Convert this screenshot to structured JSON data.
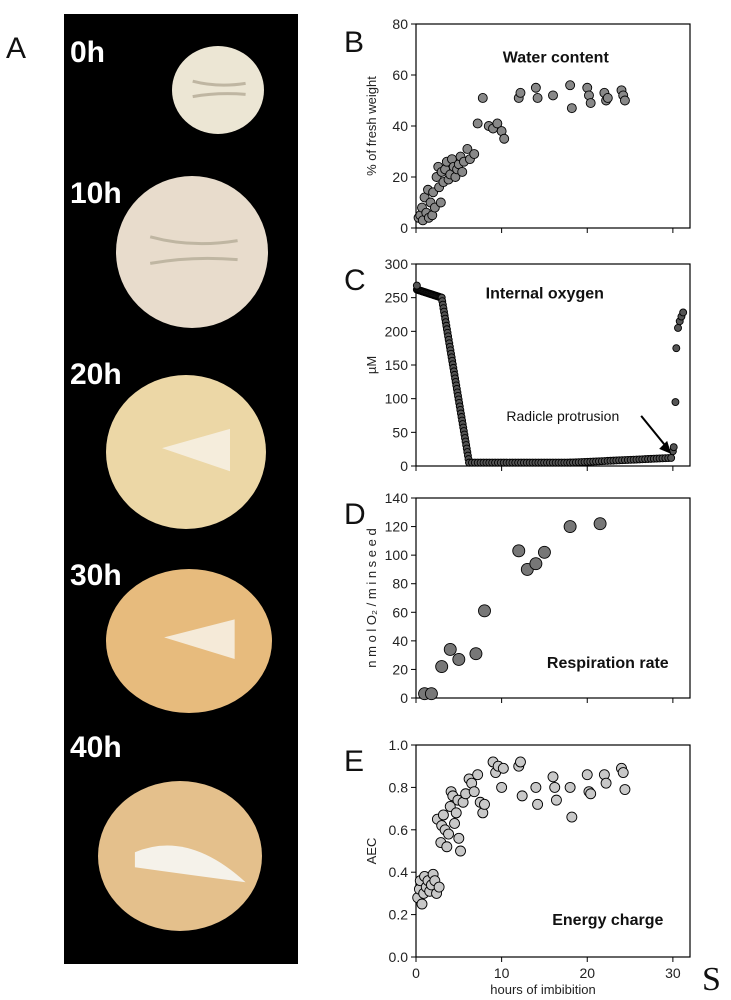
{
  "figure": {
    "panel_a_letter": "A",
    "seed_labels": [
      "0h",
      "10h",
      "20h",
      "30h",
      "40h"
    ],
    "seed_colors": {
      "0h": "#ece6d4",
      "10h": "#e8dccc",
      "20h": "#ecd7a6",
      "30h": "#e7bb7d",
      "40h": "#e4c08c"
    },
    "x_axis_label": "hours of imbibition",
    "corner_mark": "S"
  },
  "chart_data": [
    {
      "id": "B",
      "letter": "B",
      "type": "scatter",
      "title": "Water content",
      "xlabel": "",
      "ylabel": "% of fresh weight",
      "xlim": [
        0,
        32
      ],
      "ylim": [
        0,
        80
      ],
      "yticks": [
        0,
        20,
        40,
        60,
        80
      ],
      "xticks": [
        0,
        10,
        20,
        30
      ],
      "show_x_tick_labels": false,
      "marker_color": "#888888",
      "marker_size": 4.5,
      "points": [
        [
          0.3,
          4
        ],
        [
          0.5,
          5
        ],
        [
          0.7,
          8
        ],
        [
          0.8,
          3
        ],
        [
          1,
          12
        ],
        [
          1.2,
          6
        ],
        [
          1.4,
          15
        ],
        [
          1.5,
          4
        ],
        [
          1.7,
          10
        ],
        [
          1.9,
          5
        ],
        [
          2,
          14
        ],
        [
          2.2,
          8
        ],
        [
          2.4,
          20
        ],
        [
          2.6,
          24
        ],
        [
          2.7,
          16
        ],
        [
          2.9,
          10
        ],
        [
          3,
          22
        ],
        [
          3.2,
          18
        ],
        [
          3.4,
          23
        ],
        [
          3.6,
          26
        ],
        [
          3.8,
          19
        ],
        [
          4,
          21
        ],
        [
          4.2,
          27
        ],
        [
          4.4,
          24
        ],
        [
          4.6,
          20
        ],
        [
          4.8,
          23
        ],
        [
          5,
          25
        ],
        [
          5.2,
          28
        ],
        [
          5.4,
          22
        ],
        [
          5.6,
          26
        ],
        [
          6,
          31
        ],
        [
          6.3,
          27
        ],
        [
          6.8,
          29
        ],
        [
          7.2,
          41
        ],
        [
          7.8,
          51
        ],
        [
          8.5,
          40
        ],
        [
          9,
          39
        ],
        [
          9.5,
          41
        ],
        [
          10,
          38
        ],
        [
          10.3,
          35
        ],
        [
          12,
          51
        ],
        [
          12.2,
          53
        ],
        [
          14,
          55
        ],
        [
          14.2,
          51
        ],
        [
          16,
          52
        ],
        [
          18,
          56
        ],
        [
          18.2,
          47
        ],
        [
          20,
          55
        ],
        [
          20.2,
          52
        ],
        [
          20.4,
          49
        ],
        [
          22,
          53
        ],
        [
          22.2,
          50
        ],
        [
          22.4,
          51
        ],
        [
          24,
          54
        ],
        [
          24.2,
          52
        ],
        [
          24.4,
          50
        ]
      ]
    },
    {
      "id": "C",
      "letter": "C",
      "type": "scatter",
      "title": "Internal oxygen",
      "xlabel": "",
      "ylabel": "µM",
      "xlim": [
        0,
        32
      ],
      "ylim": [
        0,
        300
      ],
      "yticks": [
        0,
        50,
        100,
        150,
        200,
        250,
        300
      ],
      "xticks": [
        0,
        10,
        20,
        30
      ],
      "show_x_tick_labels": false,
      "marker_color": "#555555",
      "marker_size": 3.5,
      "annotation": "Radicle protrusion",
      "annotation_target": [
        29.8,
        18
      ],
      "dense_series": [
        {
          "x_from": 0.1,
          "x_to": 3.0,
          "y_from": 262,
          "y_to": 250,
          "n": 26
        },
        {
          "x_from": 3.0,
          "x_to": 6.2,
          "y_from": 250,
          "y_to": 5,
          "n": 48
        },
        {
          "x_from": 6.2,
          "x_to": 18.0,
          "y_from": 5,
          "y_to": 5,
          "n": 36
        },
        {
          "x_from": 18.0,
          "x_to": 29.8,
          "y_from": 5,
          "y_to": 12,
          "n": 36
        }
      ],
      "points": [
        [
          0.1,
          268
        ],
        [
          30,
          22
        ],
        [
          30.1,
          28
        ],
        [
          30.3,
          95
        ],
        [
          30.4,
          175
        ],
        [
          30.6,
          205
        ],
        [
          30.8,
          215
        ],
        [
          31,
          222
        ],
        [
          31.2,
          228
        ]
      ]
    },
    {
      "id": "D",
      "letter": "D",
      "type": "scatter",
      "title": "Respiration rate",
      "xlabel": "",
      "ylabel": "n m o l  O₂ / m i n  s e e d",
      "xlim": [
        0,
        32
      ],
      "ylim": [
        0,
        140
      ],
      "yticks": [
        0,
        20,
        40,
        60,
        80,
        100,
        120,
        140
      ],
      "xticks": [
        0,
        10,
        20,
        30
      ],
      "show_x_tick_labels": false,
      "marker_color": "#777777",
      "marker_size": 6,
      "points": [
        [
          1,
          3
        ],
        [
          1.8,
          3
        ],
        [
          3,
          22
        ],
        [
          4,
          34
        ],
        [
          5,
          27
        ],
        [
          7,
          31
        ],
        [
          8,
          61
        ],
        [
          12,
          103
        ],
        [
          13,
          90
        ],
        [
          14,
          94
        ],
        [
          15,
          102
        ],
        [
          18,
          120
        ],
        [
          21.5,
          122
        ]
      ]
    },
    {
      "id": "E",
      "letter": "E",
      "type": "scatter",
      "title": "Energy charge",
      "xlabel": "hours of imbibition",
      "ylabel": "AEC",
      "xlim": [
        0,
        32
      ],
      "ylim": [
        0,
        1
      ],
      "yticks": [
        0,
        0.2,
        0.4,
        0.6,
        0.8,
        1.0
      ],
      "xticks": [
        0,
        10,
        20,
        30
      ],
      "show_x_tick_labels": true,
      "marker_color": "#c8c8c8",
      "marker_size": 5,
      "points": [
        [
          0.2,
          0.28
        ],
        [
          0.4,
          0.32
        ],
        [
          0.5,
          0.36
        ],
        [
          0.7,
          0.25
        ],
        [
          0.9,
          0.3
        ],
        [
          1,
          0.38
        ],
        [
          1.2,
          0.33
        ],
        [
          1.4,
          0.36
        ],
        [
          1.6,
          0.31
        ],
        [
          1.8,
          0.34
        ],
        [
          2,
          0.39
        ],
        [
          2.2,
          0.36
        ],
        [
          2.4,
          0.3
        ],
        [
          2.5,
          0.65
        ],
        [
          2.7,
          0.33
        ],
        [
          2.9,
          0.54
        ],
        [
          3,
          0.62
        ],
        [
          3.2,
          0.67
        ],
        [
          3.4,
          0.6
        ],
        [
          3.6,
          0.52
        ],
        [
          3.8,
          0.58
        ],
        [
          4,
          0.71
        ],
        [
          4.1,
          0.78
        ],
        [
          4.3,
          0.76
        ],
        [
          4.5,
          0.63
        ],
        [
          4.7,
          0.68
        ],
        [
          4.9,
          0.74
        ],
        [
          5,
          0.56
        ],
        [
          5.2,
          0.5
        ],
        [
          5.5,
          0.73
        ],
        [
          5.8,
          0.77
        ],
        [
          6.2,
          0.84
        ],
        [
          6.5,
          0.82
        ],
        [
          6.8,
          0.78
        ],
        [
          7.2,
          0.86
        ],
        [
          7.5,
          0.73
        ],
        [
          7.8,
          0.68
        ],
        [
          8,
          0.72
        ],
        [
          9,
          0.92
        ],
        [
          9.3,
          0.87
        ],
        [
          9.6,
          0.9
        ],
        [
          10,
          0.8
        ],
        [
          10.2,
          0.89
        ],
        [
          12,
          0.9
        ],
        [
          12.2,
          0.92
        ],
        [
          12.4,
          0.76
        ],
        [
          14,
          0.8
        ],
        [
          14.2,
          0.72
        ],
        [
          16,
          0.85
        ],
        [
          16.2,
          0.8
        ],
        [
          16.4,
          0.74
        ],
        [
          18,
          0.8
        ],
        [
          18.2,
          0.66
        ],
        [
          20,
          0.86
        ],
        [
          20.2,
          0.78
        ],
        [
          20.4,
          0.77
        ],
        [
          22,
          0.86
        ],
        [
          22.2,
          0.82
        ],
        [
          24,
          0.89
        ],
        [
          24.2,
          0.87
        ],
        [
          24.4,
          0.79
        ]
      ]
    }
  ]
}
